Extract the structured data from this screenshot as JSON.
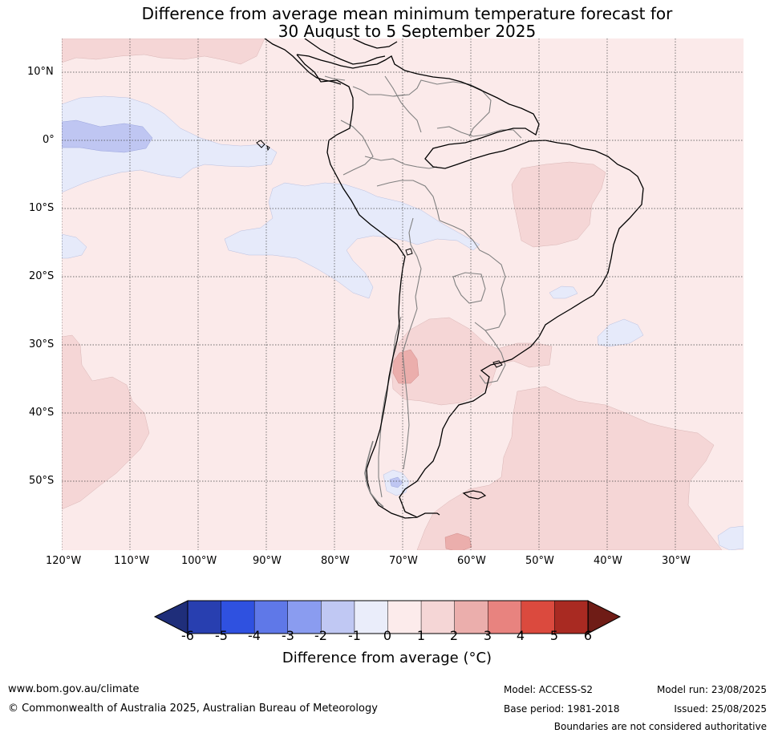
{
  "title": {
    "line1": "Difference from average mean minimum temperature forecast for",
    "line2": "30 August to 5 September 2025"
  },
  "map": {
    "lat_labels": [
      "10°N",
      "0°",
      "10°S",
      "20°S",
      "30°S",
      "40°S",
      "50°S"
    ],
    "lon_labels": [
      "120°W",
      "110°W",
      "100°W",
      "90°W",
      "80°W",
      "70°W",
      "60°W",
      "50°W",
      "40°W",
      "30°W"
    ],
    "colors": {
      "ocean_base": "#fbeaea",
      "anomaly_plus_1_2": "#f5d6d6",
      "anomaly_plus_2_3": "#ebaeac",
      "anomaly_minus_1_0": "#e6eafa",
      "anomaly_minus_2_1": "#bfc6f2",
      "coast": "#000000",
      "borders": "#808080"
    }
  },
  "colorbar": {
    "tick_labels": [
      "-6",
      "-5",
      "-4",
      "-3",
      "-2",
      "-1",
      "0",
      "1",
      "2",
      "3",
      "4",
      "5",
      "6"
    ],
    "colors": [
      "#1f2e7a",
      "#283fb0",
      "#2f51e0",
      "#5f78e8",
      "#8a9cf0",
      "#c0c8f3",
      "#eaedfa",
      "#fcebeb",
      "#f5d6d6",
      "#ebaeac",
      "#e8837f",
      "#db4a3e",
      "#a92a22",
      "#6f1c16"
    ],
    "label": "Difference from average (°C)"
  },
  "footer": {
    "website": "www.bom.gov.au/climate",
    "copyright": "© Commonwealth of Australia 2025, Australian Bureau of Meteorology",
    "model": "Model: ACCESS-S2",
    "base_period": "Base period: 1981-2018",
    "model_run": "Model run: 23/08/2025",
    "issued": "Issued: 25/08/2025",
    "disclaimer": "Boundaries are not considered authoritative"
  }
}
